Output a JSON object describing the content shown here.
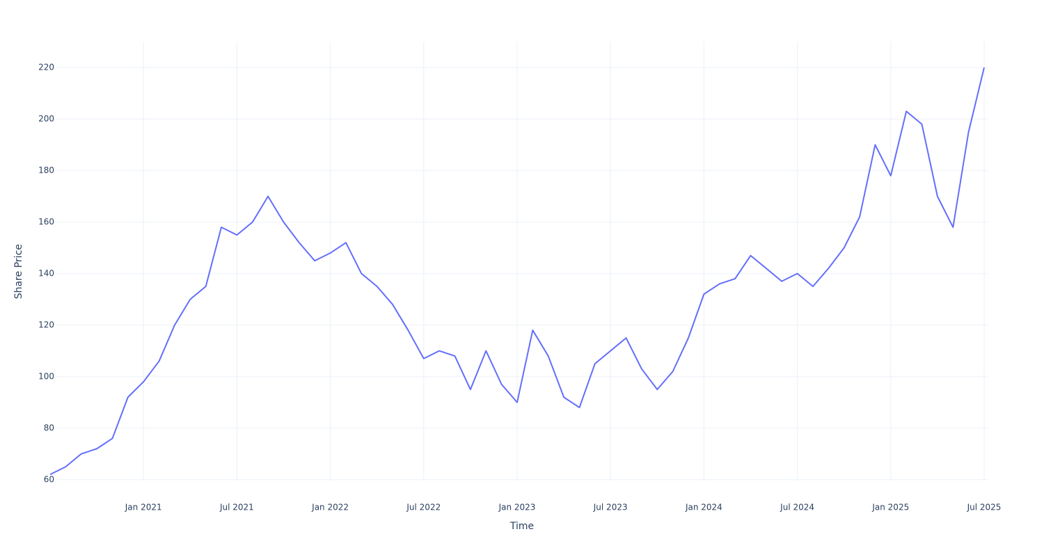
{
  "chart_data": {
    "type": "line",
    "x_label": "Time",
    "y_label": "Share Price",
    "x": [
      "2020-07",
      "2020-08",
      "2020-09",
      "2020-10",
      "2020-11",
      "2020-12",
      "2021-01",
      "2021-02",
      "2021-03",
      "2021-04",
      "2021-05",
      "2021-06",
      "2021-07",
      "2021-08",
      "2021-09",
      "2021-10",
      "2021-11",
      "2021-12",
      "2022-01",
      "2022-02",
      "2022-03",
      "2022-04",
      "2022-05",
      "2022-06",
      "2022-07",
      "2022-08",
      "2022-09",
      "2022-10",
      "2022-11",
      "2022-12",
      "2023-01",
      "2023-02",
      "2023-03",
      "2023-04",
      "2023-05",
      "2023-06",
      "2023-07",
      "2023-08",
      "2023-09",
      "2023-10",
      "2023-11",
      "2023-12",
      "2024-01",
      "2024-02",
      "2024-03",
      "2024-04",
      "2024-05",
      "2024-06",
      "2024-07",
      "2024-08",
      "2024-09",
      "2024-10",
      "2024-11",
      "2024-12",
      "2025-01",
      "2025-02",
      "2025-03",
      "2025-04",
      "2025-05",
      "2025-06",
      "2025-07"
    ],
    "series": [
      {
        "name": "Share Price",
        "color": "#636efa",
        "values": [
          62,
          65,
          70,
          72,
          76,
          92,
          98,
          106,
          120,
          130,
          135,
          158,
          155,
          160,
          170,
          160,
          152,
          145,
          148,
          152,
          140,
          135,
          128,
          118,
          107,
          110,
          108,
          95,
          110,
          97,
          90,
          118,
          108,
          92,
          88,
          105,
          110,
          115,
          103,
          95,
          102,
          115,
          132,
          136,
          138,
          147,
          142,
          137,
          140,
          135,
          142,
          150,
          162,
          190,
          178,
          203,
          198,
          170,
          158,
          195,
          220
        ]
      }
    ],
    "xlim": [
      "2020-07",
      "2025-07"
    ],
    "xticks": [
      {
        "value": "2021-01",
        "label": "Jan 2021"
      },
      {
        "value": "2021-07",
        "label": "Jul 2021"
      },
      {
        "value": "2022-01",
        "label": "Jan 2022"
      },
      {
        "value": "2022-07",
        "label": "Jul 2022"
      },
      {
        "value": "2023-01",
        "label": "Jan 2023"
      },
      {
        "value": "2023-07",
        "label": "Jul 2023"
      },
      {
        "value": "2024-01",
        "label": "Jan 2024"
      },
      {
        "value": "2024-07",
        "label": "Jul 2024"
      },
      {
        "value": "2025-01",
        "label": "Jan 2025"
      },
      {
        "value": "2025-07",
        "label": "Jul 2025"
      }
    ],
    "ylim": [
      57,
      230
    ],
    "yticks": [
      60,
      80,
      100,
      120,
      140,
      160,
      180,
      200,
      220
    ],
    "grid": true
  }
}
